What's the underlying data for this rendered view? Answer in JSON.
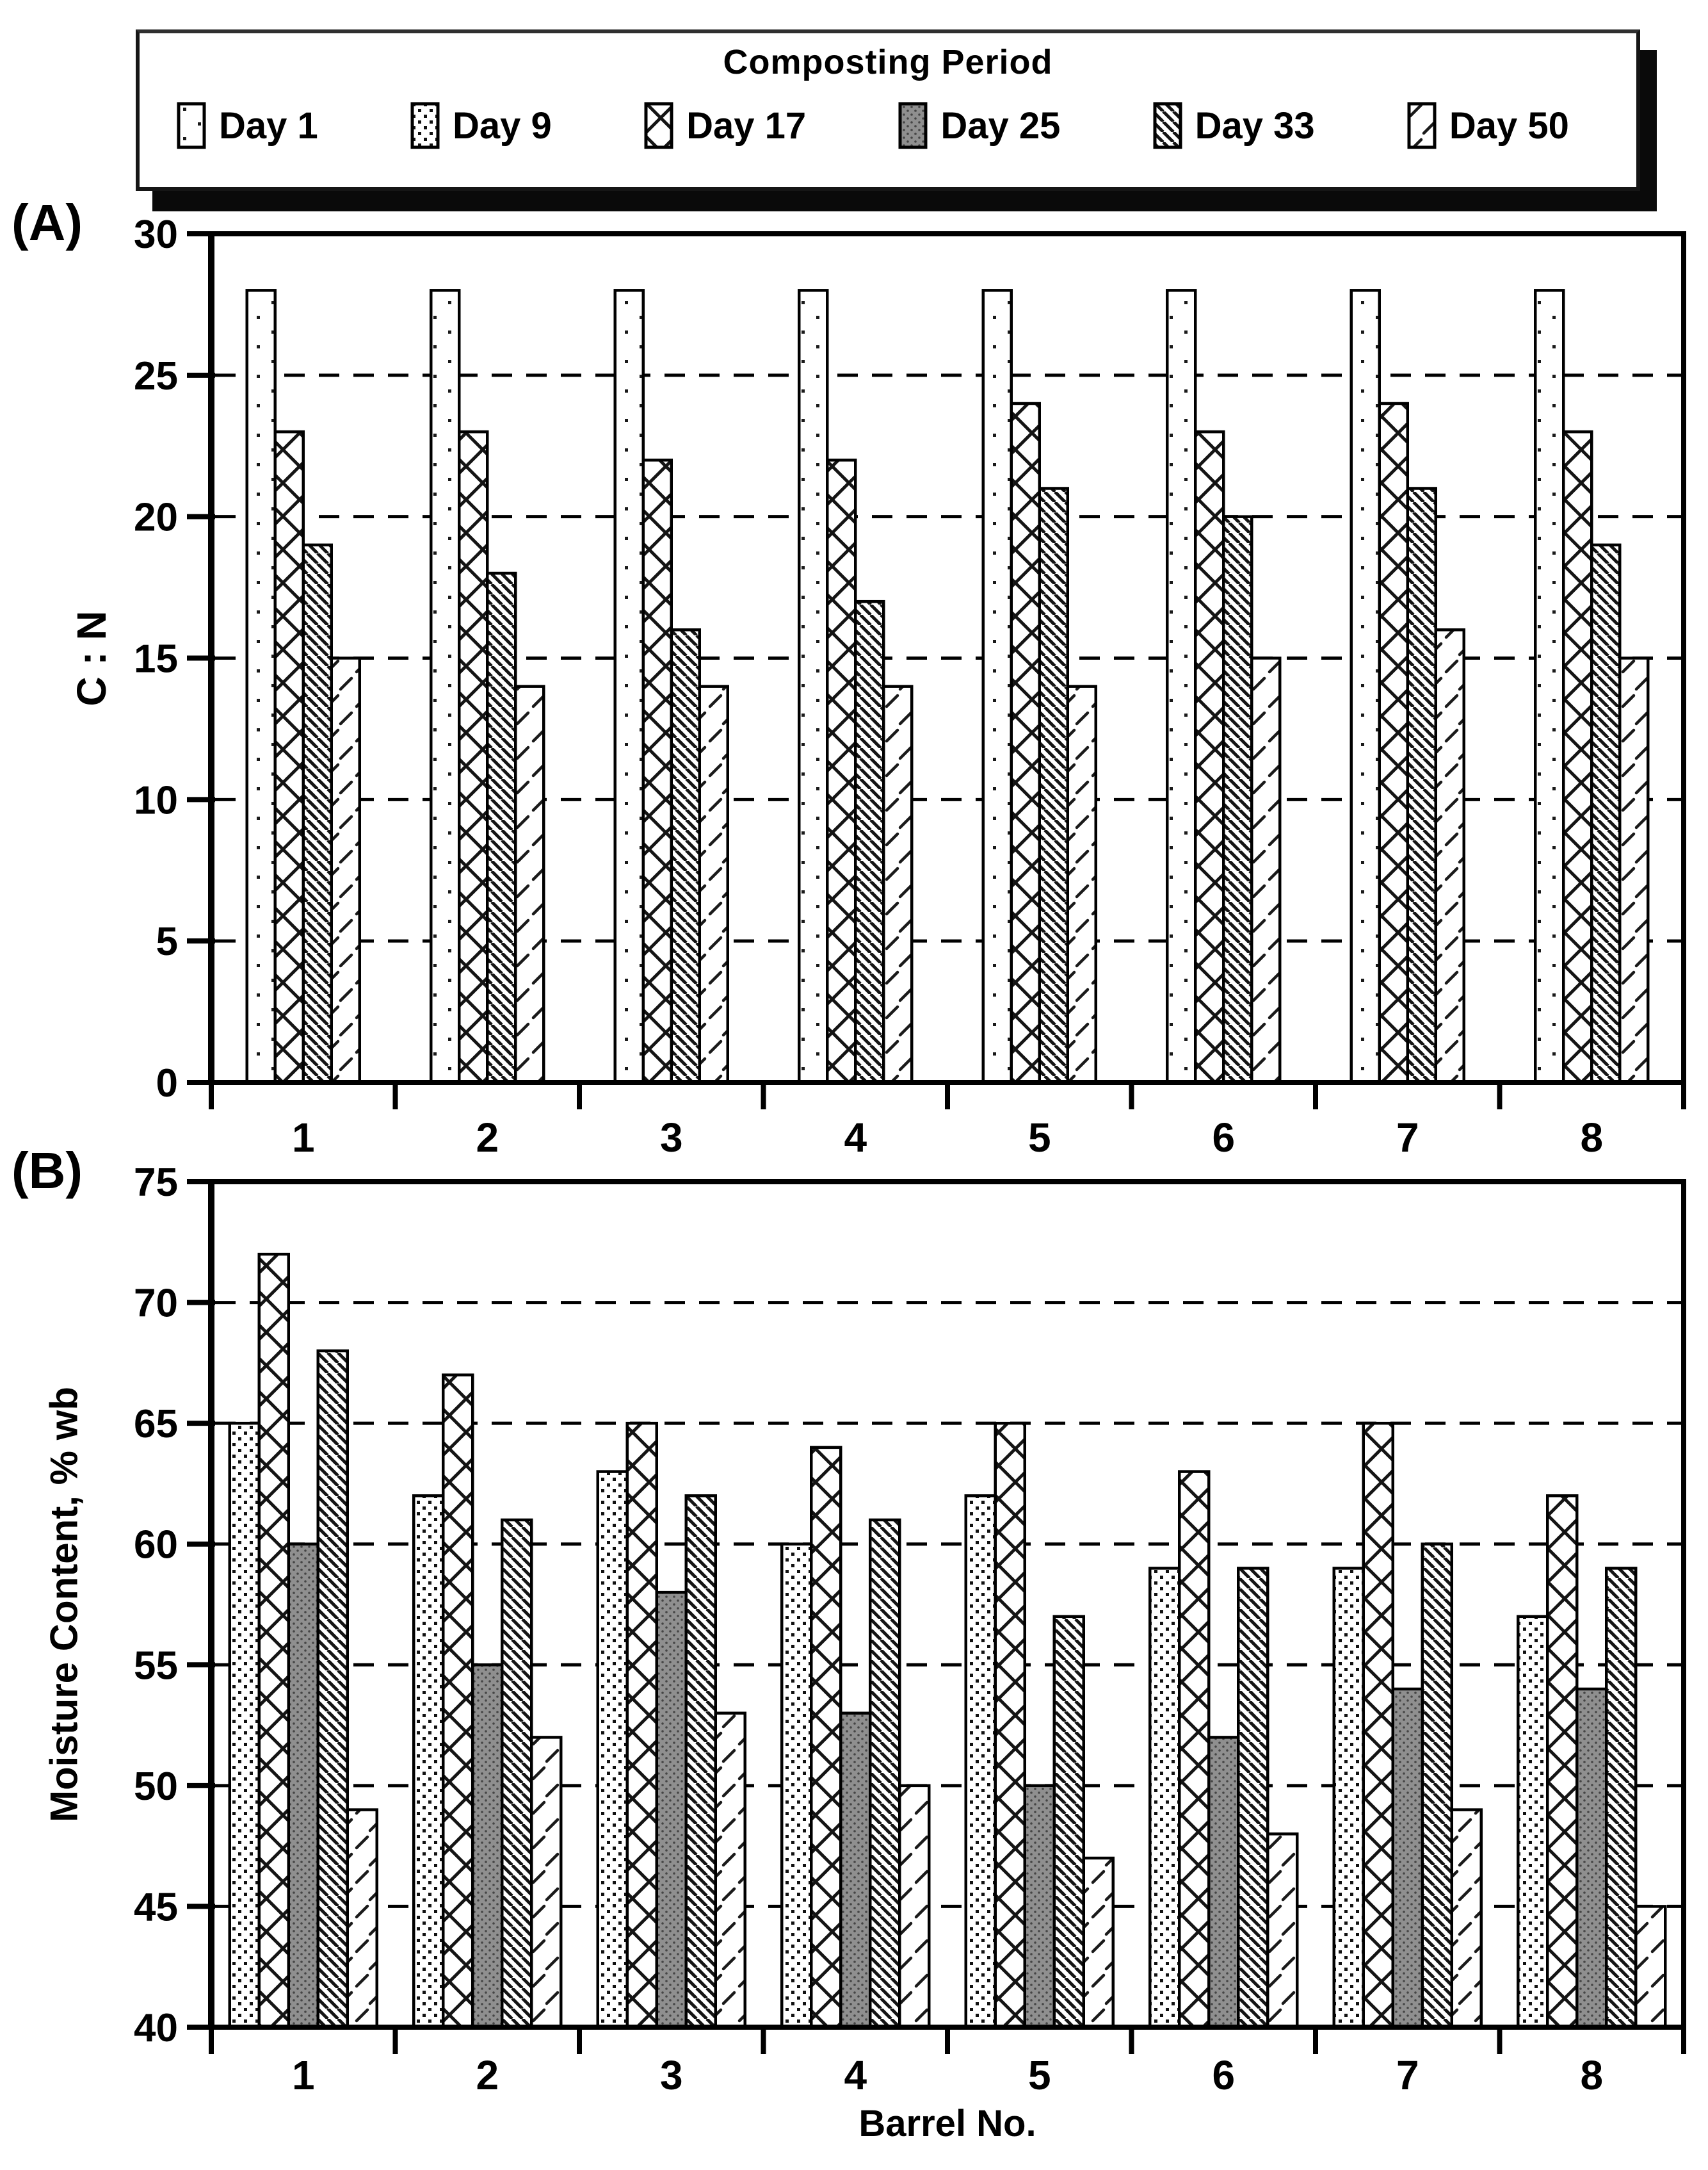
{
  "legend": {
    "title": "Composting Period",
    "items": [
      {
        "label": "Day 1",
        "pattern": "day1"
      },
      {
        "label": "Day 9",
        "pattern": "day9"
      },
      {
        "label": "Day 17",
        "pattern": "day17"
      },
      {
        "label": "Day 25",
        "pattern": "day25"
      },
      {
        "label": "Day 33",
        "pattern": "day33"
      },
      {
        "label": "Day 50",
        "pattern": "day50"
      }
    ]
  },
  "chart_data": [
    {
      "id": "a",
      "panel_label": "(A)",
      "type": "bar",
      "title": "",
      "xlabel": "",
      "ylabel": "C : N",
      "ylim": [
        0,
        30
      ],
      "yticks": [
        0,
        5,
        10,
        15,
        20,
        25,
        30
      ],
      "grid": "horizontal dashed at ytick values",
      "legend_position": "top shared box",
      "categories": [
        "1",
        "2",
        "3",
        "4",
        "5",
        "6",
        "7",
        "8"
      ],
      "series": [
        {
          "name": "Day 1",
          "pattern": "day1",
          "values": [
            28,
            28,
            28,
            28,
            28,
            28,
            28,
            28
          ]
        },
        {
          "name": "Day 17",
          "pattern": "day17",
          "values": [
            23,
            23,
            22,
            22,
            24,
            23,
            24,
            23
          ]
        },
        {
          "name": "Day 33",
          "pattern": "day33",
          "values": [
            19,
            18,
            16,
            17,
            21,
            20,
            21,
            19
          ]
        },
        {
          "name": "Day 50",
          "pattern": "day50",
          "values": [
            15,
            14,
            14,
            14,
            14,
            15,
            16,
            15
          ]
        }
      ]
    },
    {
      "id": "b",
      "panel_label": "(B)",
      "type": "bar",
      "title": "",
      "xlabel": "Barrel No.",
      "ylabel": "Moisture Content, % wb",
      "ylim": [
        40,
        75
      ],
      "yticks": [
        40,
        45,
        50,
        55,
        60,
        65,
        70,
        75
      ],
      "grid": "horizontal dashed at ytick values",
      "legend_position": "top shared box",
      "categories": [
        "1",
        "2",
        "3",
        "4",
        "5",
        "6",
        "7",
        "8"
      ],
      "series": [
        {
          "name": "Day 9",
          "pattern": "day9",
          "values": [
            65,
            62,
            63,
            60,
            62,
            59,
            59,
            57
          ]
        },
        {
          "name": "Day 17",
          "pattern": "day17",
          "values": [
            72,
            67,
            65,
            64,
            65,
            63,
            65,
            62
          ]
        },
        {
          "name": "Day 25",
          "pattern": "day25",
          "values": [
            60,
            55,
            58,
            53,
            50,
            52,
            54,
            54
          ]
        },
        {
          "name": "Day 33",
          "pattern": "day33",
          "values": [
            68,
            61,
            62,
            61,
            57,
            59,
            60,
            59
          ]
        },
        {
          "name": "Day 50",
          "pattern": "day50",
          "values": [
            49,
            52,
            53,
            50,
            47,
            48,
            49,
            45
          ]
        }
      ]
    }
  ],
  "colors": {
    "ink": "#000000",
    "background": "#ffffff",
    "day25_fill": "#8f8f8f",
    "legend_shadow": "#0a0a0a"
  }
}
